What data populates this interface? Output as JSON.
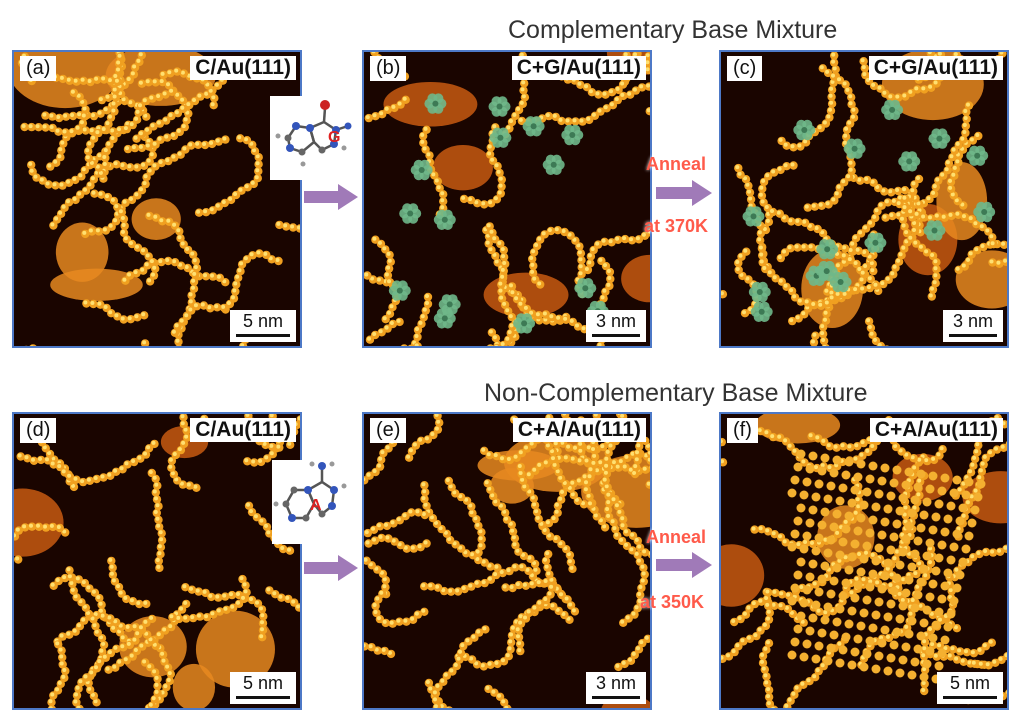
{
  "rows": {
    "top_title": "Complementary Base Mixture",
    "bottom_title": "Non-Complementary Base Mixture"
  },
  "panels": [
    {
      "label": "(a)",
      "title": "C/Au(111)",
      "scale": "5 nm"
    },
    {
      "label": "(b)",
      "title": "C+G/Au(111)",
      "scale": "3 nm"
    },
    {
      "label": "(c)",
      "title": "C+G/Au(111)",
      "scale": "3 nm"
    },
    {
      "label": "(d)",
      "title": "C/Au(111)",
      "scale": "5 nm"
    },
    {
      "label": "(e)",
      "title": "C+A/Au(111)",
      "scale": "3 nm"
    },
    {
      "label": "(f)",
      "title": "C+A/Au(111)",
      "scale": "5 nm"
    }
  ],
  "insets": {
    "top_letter": "G",
    "bottom_letter": "A"
  },
  "anneal": {
    "top_word": "Anneal",
    "top_temp": "at 370K",
    "bottom_word": "Anneal",
    "bottom_temp": "at 350K"
  },
  "colors": {
    "frame": "#4d79c7",
    "arrow": "#a07ab8",
    "anneal_text": "#ff5a4a",
    "rosette": "#6fb88a"
  }
}
